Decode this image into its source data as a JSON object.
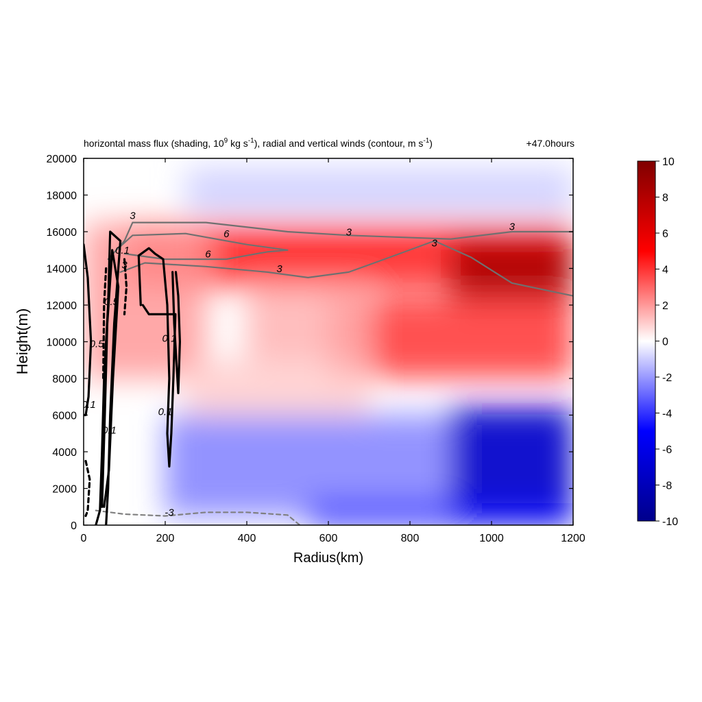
{
  "chart_data": {
    "type": "heatmap",
    "title": "horizontal mass flux (shading, 10",
    "title_sup1": "9",
    "title_mid": " kg s",
    "title_sup2": "-1",
    "title_mid2": "), radial and vertical winds (contour, m s",
    "title_sup3": "-1",
    "title_end": ")",
    "time_label": "+47.0hours",
    "xlabel": "Radius(km)",
    "ylabel": "Height(m)",
    "xlim": [
      0,
      1200
    ],
    "ylim": [
      0,
      20000
    ],
    "x_ticks": [
      "0",
      "200",
      "400",
      "600",
      "800",
      "1000",
      "1200"
    ],
    "y_ticks": [
      "0",
      "2000",
      "4000",
      "6000",
      "8000",
      "10000",
      "12000",
      "14000",
      "16000",
      "18000",
      "20000"
    ],
    "colorbar_range": [
      -10,
      10
    ],
    "colorbar_ticks": [
      "10",
      "8",
      "6",
      "4",
      "2",
      "0",
      "-2",
      "-4",
      "-6",
      "-8",
      "-10"
    ],
    "colormap": {
      "low": "#00008b",
      "mid_low": "#0000ff",
      "zero": "#ffffff",
      "mid_high": "#ff0000",
      "high": "#800000"
    },
    "shading_regions": [
      {
        "x": [
          100,
          1200
        ],
        "y": [
          13000,
          16500
        ],
        "value": 4.5
      },
      {
        "x": [
          900,
          1200
        ],
        "y": [
          12000,
          15500
        ],
        "value": 8.5
      },
      {
        "x": [
          0,
          300
        ],
        "y": [
          8000,
          16500
        ],
        "value": 2.0
      },
      {
        "x": [
          600,
          1200
        ],
        "y": [
          8000,
          12500
        ],
        "value": 4.0
      },
      {
        "x": [
          400,
          700
        ],
        "y": [
          9000,
          13000
        ],
        "value": 1.5
      },
      {
        "x": [
          250,
          700
        ],
        "y": [
          6000,
          9000
        ],
        "value": 1.0
      },
      {
        "x": [
          200,
          1200
        ],
        "y": [
          500,
          6000
        ],
        "value": -2.5
      },
      {
        "x": [
          900,
          1200
        ],
        "y": [
          0,
          6500
        ],
        "value": -7.5
      },
      {
        "x": [
          550,
          1200
        ],
        "y": [
          0,
          1200
        ],
        "value": -5.0
      },
      {
        "x": [
          250,
          1200
        ],
        "y": [
          17000,
          19500
        ],
        "value": -1.0
      }
    ],
    "contours": [
      {
        "level": "3",
        "color": "#707070",
        "style": "solid",
        "width": 2.2,
        "points": [
          [
            60,
            14500
          ],
          [
            100,
            15500
          ],
          [
            120,
            16500
          ],
          [
            300,
            16500
          ],
          [
            500,
            16000
          ],
          [
            650,
            15800
          ],
          [
            900,
            15600
          ],
          [
            1050,
            16000
          ],
          [
            1200,
            16000
          ]
        ]
      },
      {
        "level": "3",
        "color": "#707070",
        "style": "solid",
        "width": 2.2,
        "points": [
          [
            90,
            13800
          ],
          [
            150,
            14300
          ],
          [
            300,
            14100
          ],
          [
            450,
            13800
          ],
          [
            550,
            13500
          ],
          [
            650,
            13800
          ],
          [
            750,
            14600
          ],
          [
            860,
            15500
          ],
          [
            950,
            14600
          ],
          [
            1050,
            13200
          ],
          [
            1200,
            12500
          ]
        ]
      },
      {
        "level": "6",
        "color": "#707070",
        "style": "solid",
        "width": 2.2,
        "points": [
          [
            80,
            15000
          ],
          [
            120,
            15800
          ],
          [
            250,
            15900
          ],
          [
            400,
            15300
          ],
          [
            500,
            15000
          ],
          [
            450,
            14900
          ],
          [
            350,
            14500
          ],
          [
            200,
            14500
          ],
          [
            100,
            14800
          ]
        ]
      },
      {
        "level": "-3",
        "color": "#808080",
        "style": "dashed",
        "width": 2.2,
        "points": [
          [
            30,
            800
          ],
          [
            100,
            600
          ],
          [
            200,
            500
          ],
          [
            300,
            700
          ],
          [
            400,
            700
          ],
          [
            500,
            550
          ],
          [
            530,
            0
          ]
        ]
      },
      {
        "level": "0.1",
        "color": "#000000",
        "style": "solid",
        "width": 3.2,
        "points": [
          [
            30,
            0
          ],
          [
            40,
            800
          ],
          [
            45,
            4000
          ],
          [
            50,
            8000
          ],
          [
            60,
            12000
          ],
          [
            65,
            16000
          ],
          [
            90,
            15500
          ],
          [
            75,
            11000
          ],
          [
            65,
            6000
          ],
          [
            60,
            2000
          ],
          [
            55,
            0
          ]
        ]
      },
      {
        "level": "0.5",
        "color": "#000000",
        "style": "solid",
        "width": 3.2,
        "points": [
          [
            45,
            1000
          ],
          [
            52,
            6000
          ],
          [
            58,
            11000
          ],
          [
            70,
            15000
          ],
          [
            85,
            13000
          ],
          [
            72,
            8000
          ],
          [
            62,
            3000
          ],
          [
            50,
            1000
          ]
        ]
      },
      {
        "level": "0.1",
        "color": "#000000",
        "style": "solid",
        "width": 3.2,
        "points": [
          [
            140,
            12000
          ],
          [
            135,
            14700
          ],
          [
            160,
            15100
          ],
          [
            175,
            14800
          ],
          [
            195,
            14500
          ],
          [
            205,
            12000
          ],
          [
            210,
            8000
          ],
          [
            205,
            5000
          ],
          [
            210,
            3200
          ],
          [
            215,
            5000
          ],
          [
            220,
            8000
          ],
          [
            225,
            11500
          ],
          [
            195,
            11500
          ],
          [
            160,
            11500
          ],
          [
            145,
            12000
          ]
        ]
      },
      {
        "level": "0.1",
        "color": "#000000",
        "style": "solid",
        "width": 3.2,
        "points": [
          [
            218,
            13800
          ],
          [
            222,
            11000
          ],
          [
            232,
            7200
          ],
          [
            236,
            10000
          ],
          [
            232,
            12500
          ],
          [
            226,
            13800
          ]
        ]
      },
      {
        "level": "0.1",
        "color": "#000000",
        "style": "solid",
        "width": 3.2,
        "points": [
          [
            0,
            15300
          ],
          [
            10,
            13500
          ],
          [
            18,
            10000
          ],
          [
            12,
            7000
          ],
          [
            5,
            6000
          ],
          [
            0,
            6000
          ]
        ]
      },
      {
        "level": "-0.1",
        "color": "#000000",
        "style": "dashed",
        "width": 3.2,
        "points": [
          [
            55,
            14000
          ],
          [
            50,
            12000
          ],
          [
            48,
            8000
          ]
        ]
      },
      {
        "level": "-0.1",
        "color": "#000000",
        "style": "dashed",
        "width": 3.2,
        "points": [
          [
            100,
            14500
          ],
          [
            105,
            13000
          ],
          [
            100,
            11500
          ]
        ]
      },
      {
        "level": "-0.1",
        "color": "#000000",
        "style": "dashed",
        "width": 3.2,
        "points": [
          [
            5,
            3500
          ],
          [
            15,
            2500
          ],
          [
            10,
            800
          ],
          [
            5,
            500
          ]
        ]
      }
    ],
    "contour_labels": [
      {
        "text": "3",
        "x": 120,
        "y": 16700,
        "color": "#707070"
      },
      {
        "text": "6",
        "x": 350,
        "y": 15700,
        "color": "#707070"
      },
      {
        "text": "6",
        "x": 305,
        "y": 14600,
        "color": "#707070"
      },
      {
        "text": "3",
        "x": 650,
        "y": 15800,
        "color": "#707070"
      },
      {
        "text": "3",
        "x": 1050,
        "y": 16100,
        "color": "#707070"
      },
      {
        "text": "3",
        "x": 480,
        "y": 13800,
        "color": "#707070"
      },
      {
        "text": "3",
        "x": 860,
        "y": 15200,
        "color": "#707070"
      },
      {
        "text": "-3",
        "x": 210,
        "y": 500,
        "color": "#808080"
      },
      {
        "text": "0.1",
        "x": 95,
        "y": 14800,
        "color": "#000000"
      },
      {
        "text": "0.5",
        "x": 68,
        "y": 12000,
        "color": "#000000"
      },
      {
        "text": "0.5",
        "x": 32,
        "y": 9700,
        "color": "#000000"
      },
      {
        "text": "0.1",
        "x": 210,
        "y": 10000,
        "color": "#000000"
      },
      {
        "text": "0.1",
        "x": 200,
        "y": 6000,
        "color": "#000000"
      },
      {
        "text": "0.1",
        "x": 63,
        "y": 5000,
        "color": "#000000"
      },
      {
        "text": "-0.1",
        "x": 8,
        "y": 6400,
        "color": "#000000"
      },
      {
        "text": "3",
        "x": 100,
        "y": 14000,
        "color": "#707070"
      }
    ]
  }
}
